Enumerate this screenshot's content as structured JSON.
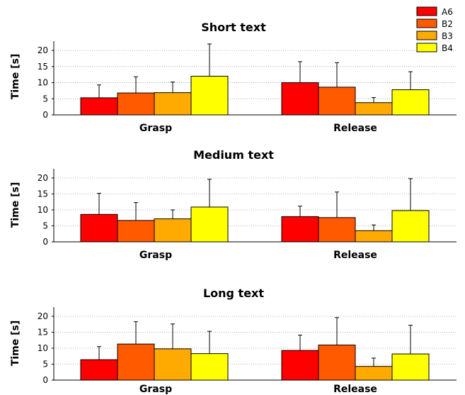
{
  "chart_data": [
    {
      "type": "bar",
      "title": "Short text",
      "ylabel": "Time [s]",
      "xlabel": "",
      "ylim": [
        0,
        22
      ],
      "yticks": [
        0,
        5,
        10,
        15,
        20
      ],
      "categories": [
        "Grasp",
        "Release"
      ],
      "series": [
        {
          "name": "A6",
          "color": "#ff0000",
          "values": [
            5.3,
            10.0
          ],
          "errors": [
            4.0,
            6.5
          ]
        },
        {
          "name": "B2",
          "color": "#ff5a00",
          "values": [
            6.8,
            8.6
          ],
          "errors": [
            5.0,
            7.6
          ]
        },
        {
          "name": "B3",
          "color": "#ffaa00",
          "values": [
            6.9,
            3.8
          ],
          "errors": [
            3.3,
            1.6
          ]
        },
        {
          "name": "B4",
          "color": "#ffff00",
          "values": [
            12.0,
            7.8
          ],
          "errors": [
            10.0,
            5.6
          ]
        }
      ],
      "grid": true,
      "legend": "top-right"
    },
    {
      "type": "bar",
      "title": "Medium text",
      "ylabel": "Time [s]",
      "xlabel": "",
      "ylim": [
        0,
        22
      ],
      "yticks": [
        0,
        5,
        10,
        15,
        20
      ],
      "categories": [
        "Grasp",
        "Release"
      ],
      "series": [
        {
          "name": "A6",
          "color": "#ff0000",
          "values": [
            8.6,
            7.9
          ],
          "errors": [
            6.6,
            3.3
          ]
        },
        {
          "name": "B2",
          "color": "#ff5a00",
          "values": [
            6.7,
            7.6
          ],
          "errors": [
            5.6,
            8.0
          ]
        },
        {
          "name": "B3",
          "color": "#ffaa00",
          "values": [
            7.2,
            3.5
          ],
          "errors": [
            2.8,
            1.8
          ]
        },
        {
          "name": "B4",
          "color": "#ffff00",
          "values": [
            10.9,
            9.8
          ],
          "errors": [
            8.7,
            10.0
          ]
        }
      ],
      "grid": true
    },
    {
      "type": "bar",
      "title": "Long text",
      "ylabel": "Time [s]",
      "xlabel": "",
      "ylim": [
        0,
        22
      ],
      "yticks": [
        0,
        5,
        10,
        15,
        20
      ],
      "categories": [
        "Grasp",
        "Release"
      ],
      "series": [
        {
          "name": "A6",
          "color": "#ff0000",
          "values": [
            6.4,
            9.3
          ],
          "errors": [
            4.1,
            4.8
          ]
        },
        {
          "name": "B2",
          "color": "#ff5a00",
          "values": [
            11.3,
            11.0
          ],
          "errors": [
            7.0,
            8.6
          ]
        },
        {
          "name": "B3",
          "color": "#ffaa00",
          "values": [
            9.8,
            4.3
          ],
          "errors": [
            7.8,
            2.6
          ]
        },
        {
          "name": "B4",
          "color": "#ffff00",
          "values": [
            8.3,
            8.2
          ],
          "errors": [
            7.0,
            9.0
          ]
        }
      ],
      "grid": true
    }
  ]
}
